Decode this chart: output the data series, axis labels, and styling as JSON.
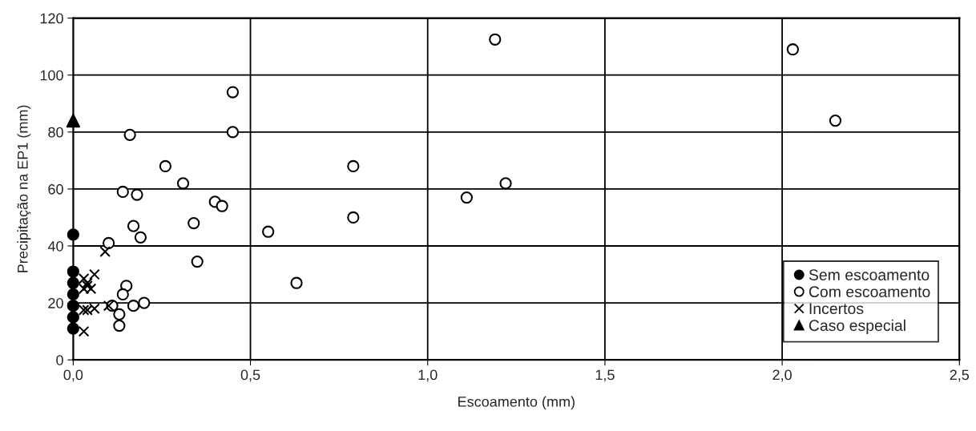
{
  "chart_data": {
    "type": "scatter",
    "xlabel": "Escoamento (mm)",
    "ylabel": "Precipitação na EP1 (mm)",
    "xlim": [
      0,
      2.5
    ],
    "ylim": [
      0,
      120
    ],
    "xticks": [
      {
        "value": 0,
        "label": "0,0"
      },
      {
        "value": 0.5,
        "label": "0,5"
      },
      {
        "value": 1.0,
        "label": "1,0"
      },
      {
        "value": 1.5,
        "label": "1,5"
      },
      {
        "value": 2.0,
        "label": "2,0"
      },
      {
        "value": 2.5,
        "label": "2,5"
      }
    ],
    "yticks": [
      0,
      20,
      40,
      60,
      80,
      100,
      120
    ],
    "grid": true,
    "legend": "bottom right",
    "series": [
      {
        "name": "Sem escoamento",
        "color": "#000000",
        "marker": "circle",
        "x": [
          0,
          0,
          0,
          0,
          0,
          0,
          0
        ],
        "values": [
          44,
          31,
          27,
          23,
          19,
          15,
          11
        ]
      },
      {
        "name": "Com escoamento",
        "color": "#ffffff",
        "marker": "circle",
        "x": [
          1.19,
          2.03,
          2.15,
          0.45,
          0.45,
          0.16,
          0.26,
          0.31,
          0.14,
          0.18,
          0.4,
          0.42,
          0.17,
          0.34,
          0.19,
          0.1,
          0.79,
          0.79,
          0.55,
          0.63,
          1.11,
          1.22,
          0.35,
          0.15,
          0.14,
          0.11,
          0.17,
          0.2,
          0.13,
          0.13
        ],
        "values": [
          112.5,
          109,
          84,
          94,
          80,
          79,
          68,
          62,
          59,
          58,
          55.5,
          54,
          47,
          48,
          43,
          41,
          68,
          50,
          45,
          27,
          57,
          62,
          34.5,
          26,
          23,
          19,
          19,
          20,
          16,
          12
        ]
      },
      {
        "name": "Incertos",
        "color": "#000000",
        "marker": "cross",
        "x": [
          0.09,
          0.06,
          0.03,
          0.04,
          0.03,
          0.05,
          0.04,
          0.1,
          0.03,
          0.04,
          0.06,
          0.03
        ],
        "values": [
          38,
          30,
          28.5,
          27,
          25,
          25,
          26,
          19,
          17.5,
          17.5,
          18,
          10
        ]
      },
      {
        "name": "Caso especial",
        "color": "#000000",
        "marker": "triangle",
        "x": [
          0
        ],
        "values": [
          84
        ]
      }
    ]
  }
}
